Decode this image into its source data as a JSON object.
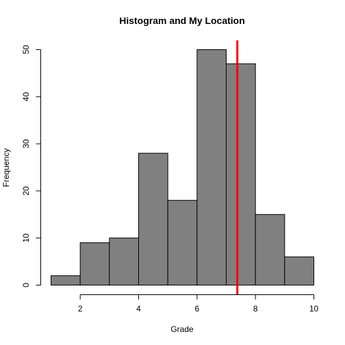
{
  "chart_data": {
    "type": "bar",
    "title": "Histogram and My Location",
    "xlabel": "Grade",
    "ylabel": "Frequency",
    "bin_edges": [
      1,
      2,
      3,
      4,
      5,
      6,
      7,
      8,
      9,
      10
    ],
    "values": [
      2,
      9,
      10,
      28,
      18,
      50,
      47,
      15,
      6
    ],
    "xlim": [
      1,
      10
    ],
    "ylim": [
      0,
      52
    ],
    "x_ticks": [
      2,
      4,
      6,
      8,
      10
    ],
    "y_ticks": [
      0,
      10,
      20,
      30,
      40,
      50
    ],
    "bar_color": "#808080",
    "marker": {
      "x": 7.38,
      "color": "#ff0000"
    },
    "grid": false,
    "legend": "none"
  }
}
